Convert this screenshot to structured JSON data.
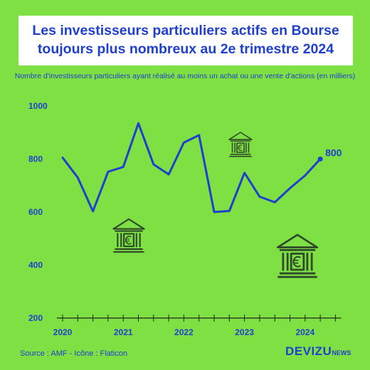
{
  "colors": {
    "background": "#7ee043",
    "accent": "#1f3fcf",
    "icon": "#2f4a2a"
  },
  "chart_data": {
    "type": "line",
    "title": "Les investisseurs particuliers actifs en Bourse toujours plus nombreux au 2e trimestre 2024",
    "title_lines": [
      "Les investisseurs particuliers actifs en Bourse",
      "toujours plus nombreux au 2e trimestre 2024"
    ],
    "subtitle": "Nombre d'investisseurs particuliers ayant réalisé au moins un achat ou une vente d'actions (en milliers)",
    "xlabel": "",
    "ylabel": "",
    "ylim": [
      200,
      1000
    ],
    "yticks": [
      "1000",
      "800",
      "600",
      "400",
      "200"
    ],
    "ytick_values": [
      1000,
      800,
      600,
      400,
      200
    ],
    "x_labels": [
      "2020",
      "2021",
      "2022",
      "2023",
      "2024"
    ],
    "x_label_quarters": [
      0,
      4,
      8,
      12,
      16
    ],
    "x_quarter_count": 19,
    "values": [
      805,
      730,
      603,
      752,
      770,
      935,
      780,
      742,
      862,
      890,
      600,
      604,
      748,
      658,
      637,
      690,
      738,
      800
    ],
    "last_value_label": "800",
    "grid": false,
    "legend": "none"
  },
  "footer": {
    "source": "Source : AMF - Icône : Flaticon",
    "brand_main": "DEVIZU",
    "brand_sub": "NEWS"
  },
  "icons": [
    "bank-euro-icon",
    "bank-euro-icon",
    "bank-euro-icon"
  ]
}
